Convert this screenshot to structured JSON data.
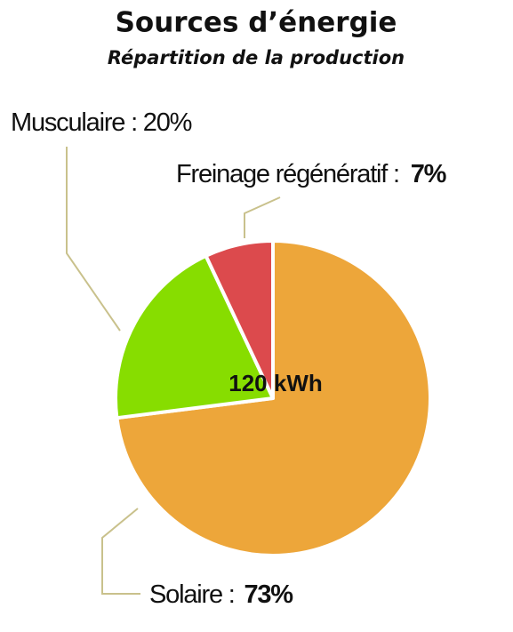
{
  "chart_data": {
    "type": "pie",
    "title": "Sources d’énergie",
    "subtitle": "Répartition de la production",
    "center_label": "120 kWh",
    "separator": " : ",
    "categories": [
      "Solaire",
      "Musculaire",
      "Freinage régénératif"
    ],
    "values": [
      73,
      20,
      7
    ],
    "value_labels": [
      "73%",
      "20%",
      "7%"
    ],
    "colors": [
      "#eda63a",
      "#87dd00",
      "#dc4a4d"
    ]
  }
}
